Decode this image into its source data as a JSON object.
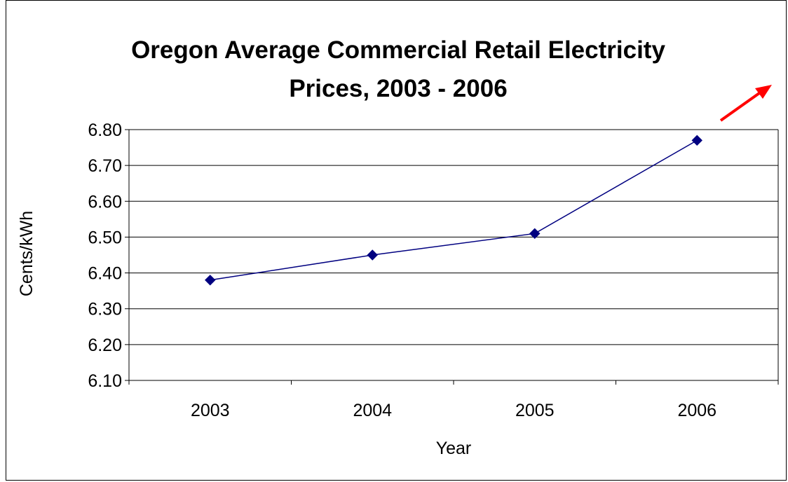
{
  "chart_data": {
    "type": "line",
    "title": "Oregon Average Commercial Retail Electricity Prices, 2003 - 2006",
    "title_lines": [
      "Oregon Average Commercial Retail Electricity",
      "Prices, 2003 - 2006"
    ],
    "xlabel": "Year",
    "ylabel": "Cents/kWh",
    "categories": [
      "2003",
      "2004",
      "2005",
      "2006"
    ],
    "series": [
      {
        "values": [
          6.38,
          6.45,
          6.51,
          6.77
        ],
        "color": "#000080"
      }
    ],
    "ylim": [
      6.1,
      6.8
    ],
    "yticks": [
      "6.10",
      "6.20",
      "6.30",
      "6.40",
      "6.50",
      "6.60",
      "6.70",
      "6.80"
    ],
    "grid": true,
    "legend": "none",
    "annotation": {
      "type": "arrow",
      "direction": "up-right",
      "color": "#ff0000"
    }
  }
}
